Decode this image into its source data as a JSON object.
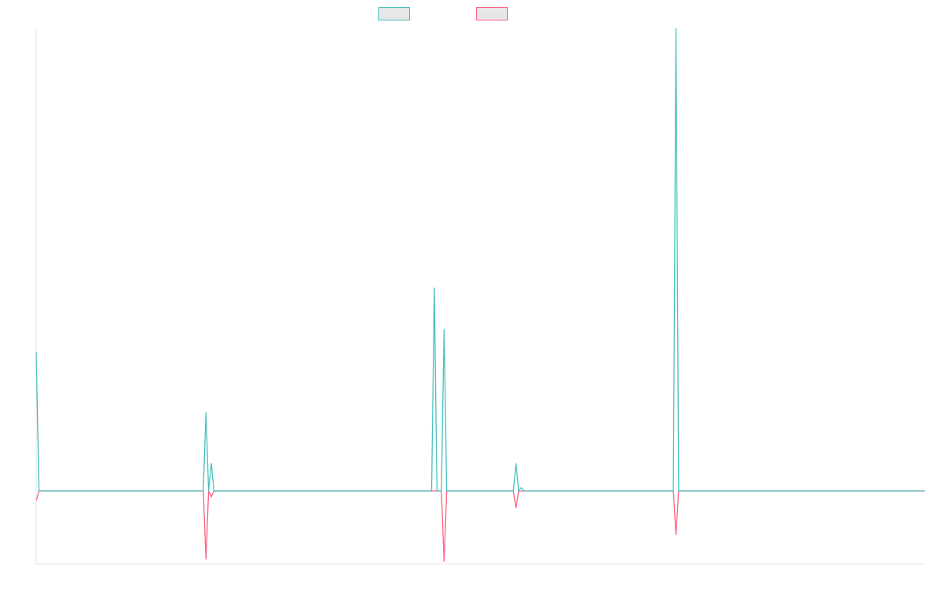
{
  "chart_data": {
    "type": "line",
    "title": "",
    "xlabel": "",
    "ylabel": "",
    "grid": false,
    "legend": "top-center",
    "x_range": [
      0,
      1000
    ],
    "ylim": [
      -0.15,
      1
    ],
    "series": [
      {
        "color": "#4bc0c0",
        "points": [
          [
            0,
            0.3
          ],
          [
            3,
            0
          ],
          [
            188,
            0
          ],
          [
            191,
            0.17
          ],
          [
            194,
            0
          ],
          [
            197,
            0.06
          ],
          [
            200,
            0
          ],
          [
            445,
            0
          ],
          [
            448,
            0.44
          ],
          [
            451,
            0
          ],
          [
            456,
            0
          ],
          [
            459,
            0.35
          ],
          [
            462,
            0
          ],
          [
            537,
            0
          ],
          [
            540,
            0.06
          ],
          [
            543,
            0
          ],
          [
            546,
            0.007
          ],
          [
            549,
            0
          ],
          [
            717,
            0
          ],
          [
            720,
            1.0
          ],
          [
            723,
            0
          ],
          [
            1000,
            0
          ]
        ]
      },
      {
        "color": "#ff6384",
        "points": [
          [
            0,
            -0.02
          ],
          [
            3,
            0
          ],
          [
            188,
            0
          ],
          [
            191,
            -0.14
          ],
          [
            194,
            0
          ],
          [
            197,
            -0.012
          ],
          [
            200,
            0
          ],
          [
            456,
            0
          ],
          [
            459,
            -0.145
          ],
          [
            462,
            0
          ],
          [
            537,
            0
          ],
          [
            540,
            -0.035
          ],
          [
            543,
            0
          ],
          [
            717,
            0
          ],
          [
            720,
            -0.09
          ],
          [
            723,
            0
          ],
          [
            1000,
            0
          ]
        ]
      }
    ]
  }
}
